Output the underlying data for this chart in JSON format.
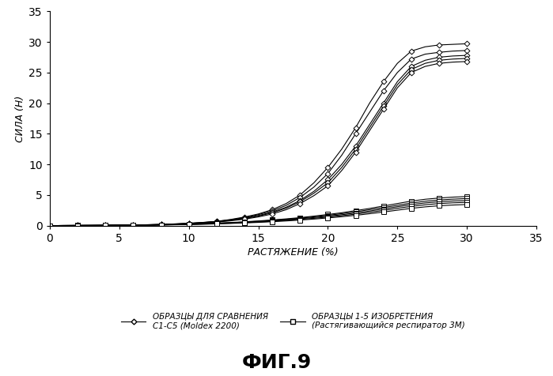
{
  "title": "ФИГ.9",
  "xlabel": "РАСТЯЖЕНИЕ (%)",
  "ylabel": "СИЛА (Н)",
  "xlim": [
    0,
    35
  ],
  "ylim": [
    0,
    35
  ],
  "xticks": [
    0,
    5,
    10,
    15,
    20,
    25,
    30,
    35
  ],
  "yticks": [
    0,
    5,
    10,
    15,
    20,
    25,
    30,
    35
  ],
  "legend1_label": "ОБРАЗЦЫ ДЛЯ СРАВНЕНИЯ\nC1-C5 (Moldex 2200)",
  "legend2_label": "ОБРАЗЦЫ 1-5 ИЗОБРЕТЕНИЯ\n(Растягивающийся респиратор 3М)",
  "comp_curves": [
    [
      [
        0,
        0.0
      ],
      [
        1,
        0.01
      ],
      [
        2,
        0.02
      ],
      [
        3,
        0.03
      ],
      [
        4,
        0.05
      ],
      [
        5,
        0.07
      ],
      [
        6,
        0.1
      ],
      [
        7,
        0.14
      ],
      [
        8,
        0.2
      ],
      [
        9,
        0.28
      ],
      [
        10,
        0.38
      ],
      [
        11,
        0.52
      ],
      [
        12,
        0.7
      ],
      [
        13,
        1.0
      ],
      [
        14,
        1.4
      ],
      [
        15,
        1.9
      ],
      [
        16,
        2.6
      ],
      [
        17,
        3.6
      ],
      [
        18,
        5.0
      ],
      [
        19,
        7.0
      ],
      [
        20,
        9.5
      ],
      [
        21,
        12.5
      ],
      [
        22,
        16.0
      ],
      [
        23,
        20.0
      ],
      [
        24,
        23.5
      ],
      [
        25,
        26.5
      ],
      [
        26,
        28.5
      ],
      [
        27,
        29.2
      ],
      [
        28,
        29.5
      ],
      [
        29,
        29.6
      ],
      [
        30,
        29.7
      ]
    ],
    [
      [
        0,
        0.0
      ],
      [
        1,
        0.01
      ],
      [
        2,
        0.02
      ],
      [
        3,
        0.03
      ],
      [
        4,
        0.05
      ],
      [
        5,
        0.07
      ],
      [
        6,
        0.1
      ],
      [
        7,
        0.14
      ],
      [
        8,
        0.19
      ],
      [
        9,
        0.27
      ],
      [
        10,
        0.37
      ],
      [
        11,
        0.5
      ],
      [
        12,
        0.68
      ],
      [
        13,
        0.95
      ],
      [
        14,
        1.3
      ],
      [
        15,
        1.8
      ],
      [
        16,
        2.4
      ],
      [
        17,
        3.3
      ],
      [
        18,
        4.6
      ],
      [
        19,
        6.3
      ],
      [
        20,
        8.5
      ],
      [
        21,
        11.5
      ],
      [
        22,
        15.0
      ],
      [
        23,
        18.5
      ],
      [
        24,
        22.0
      ],
      [
        25,
        25.0
      ],
      [
        26,
        27.2
      ],
      [
        27,
        28.0
      ],
      [
        28,
        28.3
      ],
      [
        29,
        28.5
      ],
      [
        30,
        28.6
      ]
    ],
    [
      [
        0,
        0.0
      ],
      [
        1,
        0.01
      ],
      [
        2,
        0.02
      ],
      [
        3,
        0.03
      ],
      [
        4,
        0.04
      ],
      [
        5,
        0.06
      ],
      [
        6,
        0.09
      ],
      [
        7,
        0.13
      ],
      [
        8,
        0.18
      ],
      [
        9,
        0.25
      ],
      [
        10,
        0.35
      ],
      [
        11,
        0.48
      ],
      [
        12,
        0.65
      ],
      [
        13,
        0.9
      ],
      [
        14,
        1.2
      ],
      [
        15,
        1.65
      ],
      [
        16,
        2.2
      ],
      [
        17,
        3.0
      ],
      [
        18,
        4.1
      ],
      [
        19,
        5.6
      ],
      [
        20,
        7.5
      ],
      [
        21,
        10.0
      ],
      [
        22,
        13.0
      ],
      [
        23,
        16.5
      ],
      [
        24,
        20.0
      ],
      [
        25,
        23.5
      ],
      [
        26,
        26.0
      ],
      [
        27,
        27.0
      ],
      [
        28,
        27.5
      ],
      [
        29,
        27.7
      ],
      [
        30,
        27.8
      ]
    ],
    [
      [
        0,
        0.0
      ],
      [
        1,
        0.01
      ],
      [
        2,
        0.015
      ],
      [
        3,
        0.025
      ],
      [
        4,
        0.04
      ],
      [
        5,
        0.06
      ],
      [
        6,
        0.085
      ],
      [
        7,
        0.12
      ],
      [
        8,
        0.17
      ],
      [
        9,
        0.24
      ],
      [
        10,
        0.33
      ],
      [
        11,
        0.45
      ],
      [
        12,
        0.62
      ],
      [
        13,
        0.85
      ],
      [
        14,
        1.15
      ],
      [
        15,
        1.55
      ],
      [
        16,
        2.1
      ],
      [
        17,
        2.85
      ],
      [
        18,
        3.9
      ],
      [
        19,
        5.3
      ],
      [
        20,
        7.0
      ],
      [
        21,
        9.5
      ],
      [
        22,
        12.5
      ],
      [
        23,
        16.0
      ],
      [
        24,
        19.5
      ],
      [
        25,
        23.0
      ],
      [
        26,
        25.5
      ],
      [
        27,
        26.5
      ],
      [
        28,
        27.0
      ],
      [
        29,
        27.2
      ],
      [
        30,
        27.3
      ]
    ],
    [
      [
        0,
        0.0
      ],
      [
        1,
        0.01
      ],
      [
        2,
        0.015
      ],
      [
        3,
        0.02
      ],
      [
        4,
        0.035
      ],
      [
        5,
        0.055
      ],
      [
        6,
        0.08
      ],
      [
        7,
        0.11
      ],
      [
        8,
        0.15
      ],
      [
        9,
        0.22
      ],
      [
        10,
        0.3
      ],
      [
        11,
        0.42
      ],
      [
        12,
        0.57
      ],
      [
        13,
        0.78
      ],
      [
        14,
        1.05
      ],
      [
        15,
        1.42
      ],
      [
        16,
        1.9
      ],
      [
        17,
        2.6
      ],
      [
        18,
        3.6
      ],
      [
        19,
        4.9
      ],
      [
        20,
        6.5
      ],
      [
        21,
        9.0
      ],
      [
        22,
        12.0
      ],
      [
        23,
        15.5
      ],
      [
        24,
        19.0
      ],
      [
        25,
        22.5
      ],
      [
        26,
        25.0
      ],
      [
        27,
        26.0
      ],
      [
        28,
        26.5
      ],
      [
        29,
        26.7
      ],
      [
        30,
        26.8
      ]
    ]
  ],
  "inv_curves": [
    [
      [
        0,
        0.0
      ],
      [
        1,
        0.01
      ],
      [
        2,
        0.015
      ],
      [
        3,
        0.02
      ],
      [
        4,
        0.03
      ],
      [
        5,
        0.05
      ],
      [
        6,
        0.07
      ],
      [
        7,
        0.1
      ],
      [
        8,
        0.14
      ],
      [
        9,
        0.19
      ],
      [
        10,
        0.25
      ],
      [
        11,
        0.32
      ],
      [
        12,
        0.4
      ],
      [
        13,
        0.5
      ],
      [
        14,
        0.62
      ],
      [
        15,
        0.76
      ],
      [
        16,
        0.92
      ],
      [
        17,
        1.1
      ],
      [
        18,
        1.3
      ],
      [
        19,
        1.55
      ],
      [
        20,
        1.82
      ],
      [
        21,
        2.1
      ],
      [
        22,
        2.45
      ],
      [
        23,
        2.8
      ],
      [
        24,
        3.2
      ],
      [
        25,
        3.6
      ],
      [
        26,
        4.0
      ],
      [
        27,
        4.3
      ],
      [
        28,
        4.5
      ],
      [
        29,
        4.65
      ],
      [
        30,
        4.75
      ]
    ],
    [
      [
        0,
        0.0
      ],
      [
        1,
        0.01
      ],
      [
        2,
        0.015
      ],
      [
        3,
        0.02
      ],
      [
        4,
        0.03
      ],
      [
        5,
        0.045
      ],
      [
        6,
        0.065
      ],
      [
        7,
        0.09
      ],
      [
        8,
        0.13
      ],
      [
        9,
        0.18
      ],
      [
        10,
        0.23
      ],
      [
        11,
        0.3
      ],
      [
        12,
        0.38
      ],
      [
        13,
        0.47
      ],
      [
        14,
        0.58
      ],
      [
        15,
        0.71
      ],
      [
        16,
        0.86
      ],
      [
        17,
        1.02
      ],
      [
        18,
        1.22
      ],
      [
        19,
        1.44
      ],
      [
        20,
        1.68
      ],
      [
        21,
        1.95
      ],
      [
        22,
        2.25
      ],
      [
        23,
        2.6
      ],
      [
        24,
        2.95
      ],
      [
        25,
        3.32
      ],
      [
        26,
        3.68
      ],
      [
        27,
        3.98
      ],
      [
        28,
        4.18
      ],
      [
        29,
        4.32
      ],
      [
        30,
        4.42
      ]
    ],
    [
      [
        0,
        0.0
      ],
      [
        1,
        0.01
      ],
      [
        2,
        0.015
      ],
      [
        3,
        0.02
      ],
      [
        4,
        0.028
      ],
      [
        5,
        0.042
      ],
      [
        6,
        0.06
      ],
      [
        7,
        0.085
      ],
      [
        8,
        0.12
      ],
      [
        9,
        0.165
      ],
      [
        10,
        0.215
      ],
      [
        11,
        0.275
      ],
      [
        12,
        0.35
      ],
      [
        13,
        0.435
      ],
      [
        14,
        0.535
      ],
      [
        15,
        0.65
      ],
      [
        16,
        0.79
      ],
      [
        17,
        0.94
      ],
      [
        18,
        1.12
      ],
      [
        19,
        1.32
      ],
      [
        20,
        1.54
      ],
      [
        21,
        1.78
      ],
      [
        22,
        2.06
      ],
      [
        23,
        2.38
      ],
      [
        24,
        2.72
      ],
      [
        25,
        3.08
      ],
      [
        26,
        3.42
      ],
      [
        27,
        3.7
      ],
      [
        28,
        3.9
      ],
      [
        29,
        4.02
      ],
      [
        30,
        4.1
      ]
    ],
    [
      [
        0,
        0.0
      ],
      [
        1,
        0.01
      ],
      [
        2,
        0.012
      ],
      [
        3,
        0.018
      ],
      [
        4,
        0.026
      ],
      [
        5,
        0.038
      ],
      [
        6,
        0.055
      ],
      [
        7,
        0.078
      ],
      [
        8,
        0.11
      ],
      [
        9,
        0.15
      ],
      [
        10,
        0.195
      ],
      [
        11,
        0.25
      ],
      [
        12,
        0.315
      ],
      [
        13,
        0.39
      ],
      [
        14,
        0.48
      ],
      [
        15,
        0.585
      ],
      [
        16,
        0.71
      ],
      [
        17,
        0.85
      ],
      [
        18,
        1.01
      ],
      [
        19,
        1.19
      ],
      [
        20,
        1.4
      ],
      [
        21,
        1.62
      ],
      [
        22,
        1.88
      ],
      [
        23,
        2.17
      ],
      [
        24,
        2.48
      ],
      [
        25,
        2.82
      ],
      [
        26,
        3.14
      ],
      [
        27,
        3.4
      ],
      [
        28,
        3.6
      ],
      [
        29,
        3.72
      ],
      [
        30,
        3.8
      ]
    ],
    [
      [
        0,
        0.0
      ],
      [
        1,
        0.008
      ],
      [
        2,
        0.012
      ],
      [
        3,
        0.016
      ],
      [
        4,
        0.024
      ],
      [
        5,
        0.034
      ],
      [
        6,
        0.05
      ],
      [
        7,
        0.07
      ],
      [
        8,
        0.1
      ],
      [
        9,
        0.135
      ],
      [
        10,
        0.175
      ],
      [
        11,
        0.225
      ],
      [
        12,
        0.285
      ],
      [
        13,
        0.355
      ],
      [
        14,
        0.435
      ],
      [
        15,
        0.525
      ],
      [
        16,
        0.635
      ],
      [
        17,
        0.76
      ],
      [
        18,
        0.905
      ],
      [
        19,
        1.065
      ],
      [
        20,
        1.25
      ],
      [
        21,
        1.45
      ],
      [
        22,
        1.68
      ],
      [
        23,
        1.94
      ],
      [
        24,
        2.22
      ],
      [
        25,
        2.52
      ],
      [
        26,
        2.82
      ],
      [
        27,
        3.06
      ],
      [
        28,
        3.24
      ],
      [
        29,
        3.36
      ],
      [
        30,
        3.45
      ]
    ]
  ],
  "line_color": "#000000",
  "bg_color": "#ffffff"
}
